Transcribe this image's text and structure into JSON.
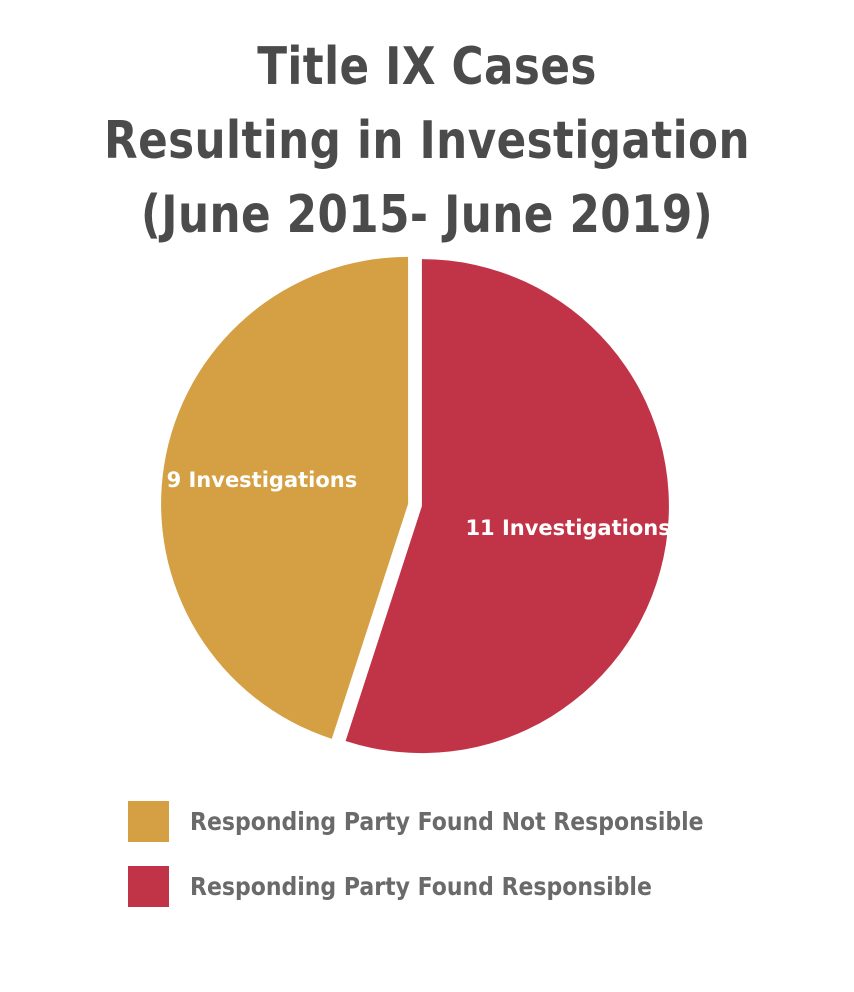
{
  "chart_data": {
    "type": "pie",
    "title_lines": [
      "Title IX Cases",
      "Resulting in Investigation",
      "(June 2015- June 2019)"
    ],
    "slices": [
      {
        "label": "Responding Party Found Not Responsible",
        "value": 9,
        "data_label": "9 Investigations",
        "color": "#d4a043"
      },
      {
        "label": "Responding Party Found Responsible",
        "value": 11,
        "data_label": "11 Investigations",
        "color": "#c13448"
      }
    ],
    "legend_position": "bottom-left"
  }
}
